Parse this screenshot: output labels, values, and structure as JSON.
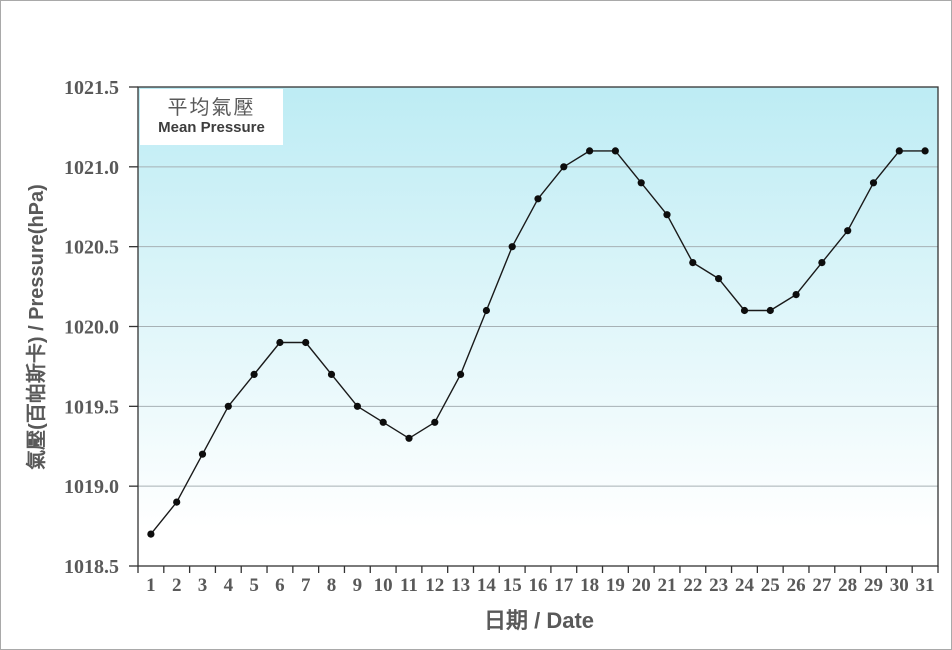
{
  "page": {
    "background": "#ffffff",
    "border_color": "#a9a9a9"
  },
  "legend": {
    "label_zh": "平均氣壓",
    "label_en": "Mean Pressure"
  },
  "axes": {
    "y_title": "氣壓(百帕斯卡) / Pressure(hPa)",
    "x_title": "日期 / Date"
  },
  "chart_data": {
    "type": "line",
    "title": "",
    "xlabel": "日期 / Date",
    "ylabel": "氣壓(百帕斯卡) / Pressure(hPa)",
    "x": [
      1,
      2,
      3,
      4,
      5,
      6,
      7,
      8,
      9,
      10,
      11,
      12,
      13,
      14,
      15,
      16,
      17,
      18,
      19,
      20,
      21,
      22,
      23,
      24,
      25,
      26,
      27,
      28,
      29,
      30,
      31
    ],
    "series": [
      {
        "name": "平均氣壓 / Mean Pressure",
        "values": [
          1018.7,
          1018.9,
          1019.2,
          1019.5,
          1019.7,
          1019.9,
          1019.9,
          1019.7,
          1019.5,
          1019.4,
          1019.3,
          1019.4,
          1019.7,
          1020.1,
          1020.5,
          1020.8,
          1021.0,
          1021.1,
          1021.1,
          1020.9,
          1020.7,
          1020.4,
          1020.3,
          1020.1,
          1020.1,
          1020.2,
          1020.4,
          1020.6,
          1020.9,
          1021.1,
          1021.1
        ]
      }
    ],
    "ylim": [
      1018.5,
      1021.5
    ],
    "yticks": [
      1018.5,
      1019.0,
      1019.5,
      1020.0,
      1020.5,
      1021.0,
      1021.5
    ],
    "grid": "horizontal",
    "legend_position": "top-left-inside",
    "colors": {
      "line": "#1a1a1a",
      "marker": "#0d0d0d",
      "gridline": "#a6b1b5",
      "axis": "#333333",
      "text": "#595959",
      "plot_bg_top": "#bdecf4",
      "plot_bg_bottom": "#ffffff"
    }
  }
}
